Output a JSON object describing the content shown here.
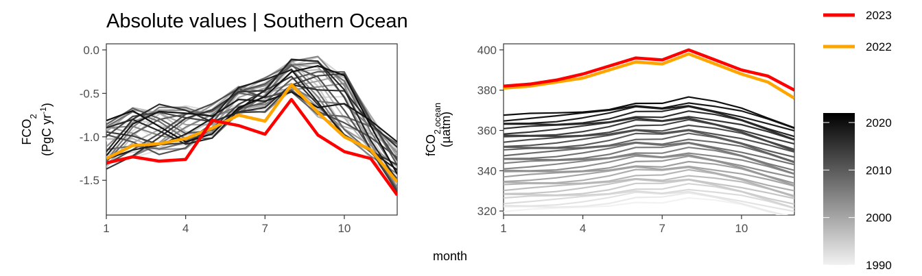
{
  "title": "Absolute values | Southern Ocean",
  "xlabel": "month",
  "legend": {
    "lines": [
      {
        "label": "2023",
        "color": "#ff0000"
      },
      {
        "label": "2022",
        "color": "#ffa500"
      }
    ],
    "colorbar": {
      "min": 1990,
      "max": 2022,
      "ticks": [
        "2020",
        "2010",
        "2000",
        "1990"
      ],
      "tick_values": [
        2020,
        2010,
        2000,
        1990
      ],
      "color_low": "#f2f2f2",
      "color_high": "#000000"
    }
  },
  "chart_data": [
    {
      "type": "line",
      "panel": "left",
      "ylabel_line1": "FCO",
      "ylabel_sub": "2",
      "ylabel_line2_pre": "(PgC yr",
      "ylabel_line2_sup": "-1",
      "ylabel_line2_post": ")",
      "xlim": [
        1,
        12
      ],
      "ylim": [
        -1.9,
        0.07
      ],
      "x_ticks": [
        1,
        4,
        7,
        10
      ],
      "x_tick_labels": [
        "1",
        "4",
        "7",
        "10"
      ],
      "y_ticks": [
        0,
        -0.5,
        -1,
        -1.5
      ],
      "y_tick_labels": [
        "0.0",
        "-0.5",
        "-1.0",
        "-1.5"
      ],
      "x": [
        1,
        2,
        3,
        4,
        5,
        6,
        7,
        8,
        9,
        10,
        11,
        12
      ],
      "series_2023": [
        -1.3,
        -1.23,
        -1.28,
        -1.26,
        -0.81,
        -0.87,
        -0.97,
        -0.57,
        -0.98,
        -1.17,
        -1.25,
        -1.67
      ],
      "series_2022": [
        -1.25,
        -1.1,
        -1.08,
        -1.02,
        -0.9,
        -0.75,
        -0.82,
        -0.4,
        -0.72,
        -1.0,
        -1.15,
        -1.52
      ],
      "history_base": [
        -1.1,
        -0.95,
        -0.92,
        -0.9,
        -0.82,
        -0.58,
        -0.52,
        -0.3,
        -0.42,
        -0.62,
        -1.0,
        -1.35
      ],
      "history_amp": [
        0.25,
        0.25,
        0.25,
        0.22,
        0.15,
        0.15,
        0.15,
        0.18,
        0.3,
        0.35,
        0.2,
        0.25
      ]
    },
    {
      "type": "line",
      "panel": "right",
      "ylabel_line1": "fCO",
      "ylabel_sub": "2,ocean",
      "ylabel_line2_pre": "(µatm)",
      "ylabel_line2_sup": "",
      "ylabel_line2_post": "",
      "xlim": [
        1,
        12
      ],
      "ylim": [
        318,
        403
      ],
      "x_ticks": [
        1,
        4,
        7,
        10
      ],
      "x_tick_labels": [
        "1",
        "4",
        "7",
        "10"
      ],
      "y_ticks": [
        320,
        340,
        360,
        380,
        400
      ],
      "y_tick_labels": [
        "320",
        "340",
        "360",
        "380",
        "400"
      ],
      "x": [
        1,
        2,
        3,
        4,
        5,
        6,
        7,
        8,
        9,
        10,
        11,
        12
      ],
      "series_2023": [
        382,
        383,
        385,
        388,
        392,
        396,
        395,
        400,
        395,
        390,
        387,
        380
      ],
      "series_2022": [
        381,
        382,
        384,
        386,
        390,
        394,
        393,
        398,
        393,
        388,
        384,
        376
      ],
      "history_base": [
        -2.5,
        -2.0,
        -1.5,
        -0.5,
        1.0,
        3.5,
        3.0,
        5.0,
        3.0,
        0.5,
        -3.0,
        -6.5
      ],
      "history_start": 322,
      "history_slope": 1.6
    }
  ]
}
